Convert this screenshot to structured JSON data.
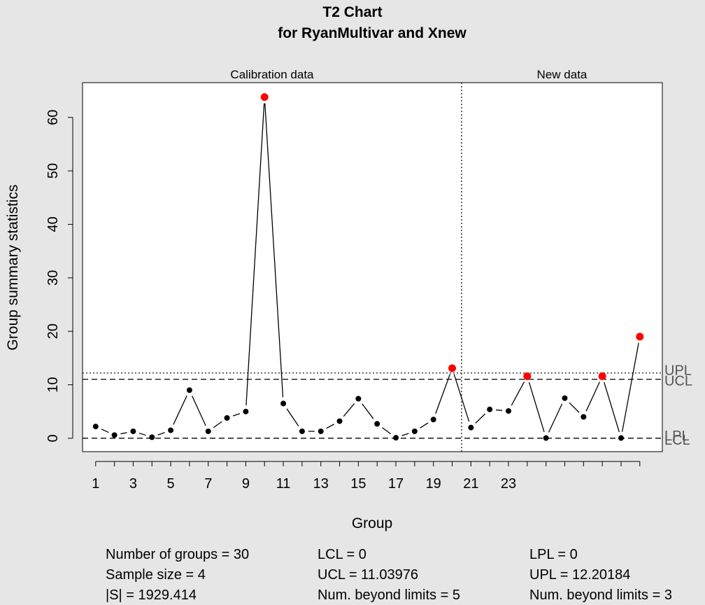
{
  "chart_data": {
    "type": "line",
    "title": "T2 Chart",
    "subtitle": "for RyanMultivar and Xnew",
    "xlabel": "Group",
    "ylabel": "Group summary statistics",
    "xlim": [
      0.3,
      31.2
    ],
    "ylim": [
      -2.5,
      66.5
    ],
    "xticks": [
      1,
      3,
      5,
      7,
      9,
      11,
      13,
      15,
      17,
      19,
      21,
      23
    ],
    "yticks": [
      0,
      10,
      20,
      30,
      40,
      50,
      60
    ],
    "sections": [
      {
        "label": "Calibration data",
        "from": 1,
        "to": 20
      },
      {
        "label": "New data",
        "from": 21,
        "to": 30
      }
    ],
    "boundary_x": 20.5,
    "x": [
      1,
      2,
      3,
      4,
      5,
      6,
      7,
      8,
      9,
      10,
      11,
      12,
      13,
      14,
      15,
      16,
      17,
      18,
      19,
      20,
      21,
      22,
      23,
      24,
      25,
      26,
      27,
      28,
      29,
      30
    ],
    "values": [
      2.2,
      0.6,
      1.3,
      0.2,
      1.5,
      9.0,
      1.3,
      3.8,
      5.0,
      63.8,
      6.5,
      1.3,
      1.3,
      3.2,
      7.4,
      2.7,
      0.1,
      1.3,
      3.5,
      13.1,
      2.0,
      5.4,
      5.1,
      11.6,
      0.05,
      7.5,
      4.0,
      11.6,
      0.05,
      19.0
    ],
    "beyond_limits": [
      10,
      20,
      24,
      28,
      30
    ],
    "limits": [
      {
        "label": "UPL",
        "value": 12.20184,
        "style": "dotted"
      },
      {
        "label": "UCL",
        "value": 11.03976,
        "style": "dashed"
      },
      {
        "label": "LPL",
        "value": 0,
        "style": "dashed"
      },
      {
        "label": "LCL",
        "value": 0,
        "style": "dashed"
      }
    ],
    "point_color": "#000000",
    "beyond_color": "#ff0000",
    "grid": false,
    "legend": "none"
  },
  "stats": [
    [
      "Number of groups = 30",
      "Sample size = 4",
      "|S| = 1929.414"
    ],
    [
      "LCL = 0",
      "UCL = 11.03976",
      "Num. beyond limits = 5"
    ],
    [
      "LPL = 0",
      "UPL = 12.20184",
      "Num. beyond limits = 3"
    ]
  ]
}
